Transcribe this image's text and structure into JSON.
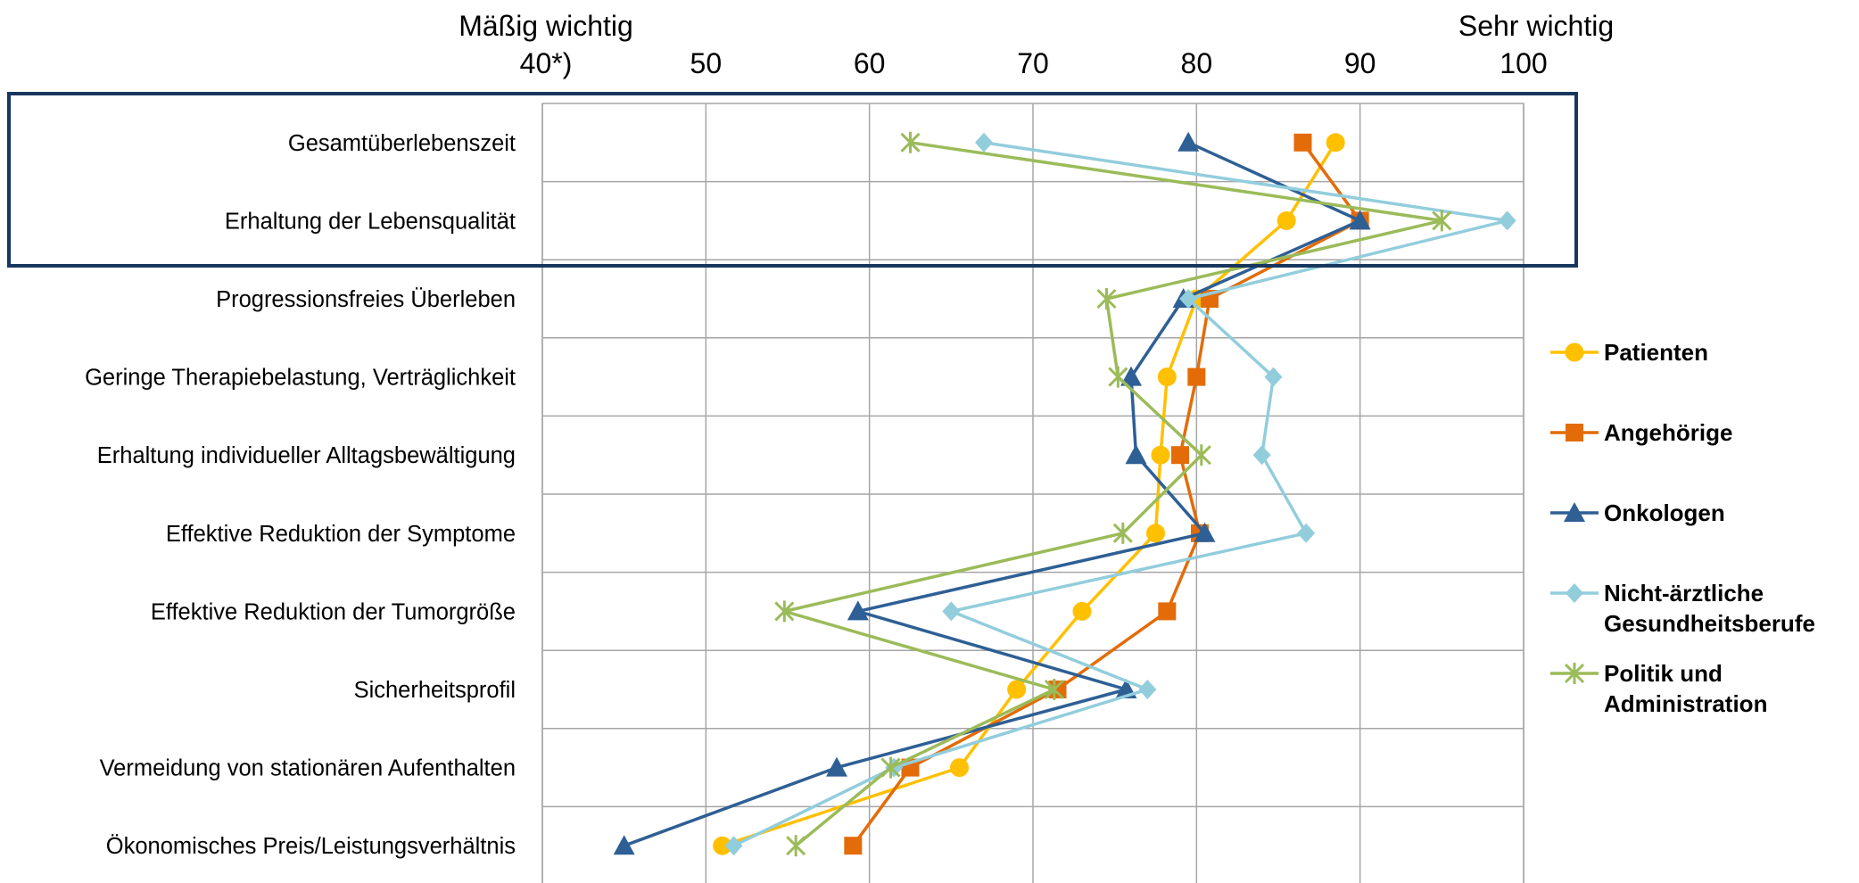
{
  "chart_data": {
    "type": "line",
    "orientation": "horizontal-values",
    "scale_low_label": "Mäßig wichtig",
    "scale_high_label": "Sehr wichtig",
    "x_ticks": [
      "40*)",
      "50",
      "60",
      "70",
      "80",
      "90",
      "100"
    ],
    "xlim": [
      40,
      100
    ],
    "grid": true,
    "legend_position": "right",
    "highlight_box_categories": [
      "Gesamtüberlebenszeit",
      "Erhaltung der Lebensqualität"
    ],
    "categories": [
      "Gesamtüberlebenszeit",
      "Erhaltung der Lebensqualität",
      "Progressionsfreies Überleben",
      "Geringe Therapiebelastung, Verträglichkeit",
      "Erhaltung individueller Alltagsbewältigung",
      "Effektive Reduktion der Symptome",
      "Effektive Reduktion der Tumorgröße",
      "Sicherheitsprofil",
      "Vermeidung von stationären Aufenthalten",
      "Ökonomisches Preis/Leistungsverhältnis"
    ],
    "series": [
      {
        "name": "Patienten",
        "color": "#FFC000",
        "marker": "circle",
        "values": [
          88.5,
          85.5,
          80,
          78.2,
          77.8,
          77.5,
          73,
          69,
          65.5,
          51
        ]
      },
      {
        "name": "Angehörige",
        "color": "#E36C09",
        "marker": "square",
        "values": [
          86.5,
          90,
          80.8,
          80,
          79,
          80.2,
          78.2,
          71.5,
          62.5,
          59
        ]
      },
      {
        "name": "Onkologen",
        "color": "#2E5F95",
        "marker": "triangle",
        "values": [
          79.5,
          90,
          79.2,
          76,
          76.3,
          80.5,
          59.3,
          75.7,
          58,
          45
        ]
      },
      {
        "name": "Nicht-ärztliche Gesundheitsberufe",
        "color": "#92CDDC",
        "marker": "diamond",
        "values": [
          67,
          99,
          79.5,
          84.7,
          84,
          86.7,
          65,
          77,
          61.5,
          51.7
        ]
      },
      {
        "name": "Politik und Administration",
        "color": "#9BBB59",
        "marker": "star",
        "values": [
          62.5,
          95,
          74.5,
          75.2,
          80.3,
          75.5,
          54.8,
          71.3,
          61.3,
          55.5
        ]
      }
    ]
  },
  "legend": [
    {
      "name_line1": "Patienten",
      "name_line2": ""
    },
    {
      "name_line1": "Angehörige",
      "name_line2": ""
    },
    {
      "name_line1": "Onkologen",
      "name_line2": ""
    },
    {
      "name_line1": "Nicht-ärztliche",
      "name_line2": "Gesundheitsberufe"
    },
    {
      "name_line1": "Politik und",
      "name_line2": "Administration"
    }
  ]
}
